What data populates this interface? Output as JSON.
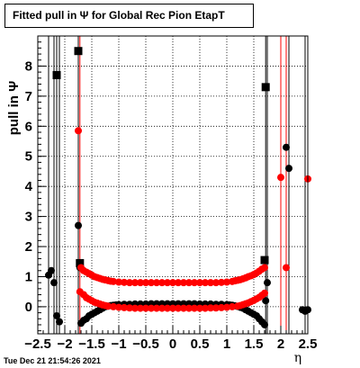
{
  "chart_data": {
    "type": "scatter",
    "title": "Fitted pull in  Ψ  for Global Rec Pion EtapT",
    "xlabel": "η",
    "ylabel": "pull in  Ψ",
    "xlim": [
      -2.5,
      2.5
    ],
    "ylim": [
      -0.9,
      9.0
    ],
    "grid": true,
    "x_ticks": [
      -2.5,
      -2,
      -1.5,
      -1,
      -0.5,
      0,
      0.5,
      1,
      1.5,
      2,
      2.5
    ],
    "x_tick_labels": [
      "−2.5",
      "−2",
      "−1.5",
      "−1",
      "−0.5",
      "0",
      "0.5",
      "1",
      "1.5",
      "2",
      "2.5"
    ],
    "y_ticks": [
      0,
      1,
      2,
      3,
      4,
      5,
      6,
      7,
      8
    ],
    "y_tick_labels": [
      "0",
      "1",
      "2",
      "3",
      "4",
      "5",
      "6",
      "7",
      "8"
    ],
    "series": [
      {
        "marker": "square",
        "color": "#000000",
        "points": [
          [
            -2.15,
            7.7
          ],
          [
            -1.75,
            8.5
          ],
          [
            -1.72,
            1.45
          ],
          [
            1.72,
            7.3
          ],
          [
            1.7,
            1.55
          ]
        ]
      },
      {
        "marker": "circle",
        "color": "#000000",
        "points": [
          [
            -2.3,
            1.05
          ],
          [
            -2.25,
            1.2
          ],
          [
            -2.2,
            0.8
          ],
          [
            -2.15,
            -0.3
          ],
          [
            -2.1,
            -0.5
          ],
          [
            -1.75,
            2.7
          ],
          [
            -1.72,
            1.3
          ],
          [
            -1.7,
            -0.55
          ],
          [
            -1.65,
            -0.45
          ],
          [
            -1.6,
            -0.4
          ],
          [
            -1.55,
            -0.3
          ],
          [
            -1.5,
            -0.25
          ],
          [
            -1.45,
            -0.2
          ],
          [
            -1.4,
            -0.15
          ],
          [
            -1.35,
            -0.1
          ],
          [
            -1.3,
            -0.05
          ],
          [
            -1.25,
            0.0
          ],
          [
            -1.2,
            0.02
          ],
          [
            -1.15,
            0.04
          ],
          [
            -1.1,
            0.05
          ],
          [
            -1.05,
            0.06
          ],
          [
            -1.0,
            0.07
          ],
          [
            -0.9,
            0.08
          ],
          [
            -0.8,
            0.08
          ],
          [
            -0.7,
            0.09
          ],
          [
            -0.6,
            0.09
          ],
          [
            -0.5,
            0.09
          ],
          [
            -0.4,
            0.1
          ],
          [
            -0.3,
            0.1
          ],
          [
            -0.2,
            0.1
          ],
          [
            -0.1,
            0.1
          ],
          [
            0.0,
            0.1
          ],
          [
            0.1,
            0.1
          ],
          [
            0.2,
            0.1
          ],
          [
            0.3,
            0.1
          ],
          [
            0.4,
            0.1
          ],
          [
            0.5,
            0.09
          ],
          [
            0.6,
            0.09
          ],
          [
            0.7,
            0.09
          ],
          [
            0.8,
            0.08
          ],
          [
            0.9,
            0.08
          ],
          [
            1.0,
            0.07
          ],
          [
            1.05,
            0.06
          ],
          [
            1.1,
            0.05
          ],
          [
            1.15,
            0.03
          ],
          [
            1.2,
            0.01
          ],
          [
            1.25,
            -0.02
          ],
          [
            1.3,
            -0.05
          ],
          [
            1.35,
            -0.1
          ],
          [
            1.4,
            -0.15
          ],
          [
            1.45,
            -0.2
          ],
          [
            1.5,
            -0.25
          ],
          [
            1.55,
            -0.3
          ],
          [
            1.6,
            -0.4
          ],
          [
            1.65,
            -0.5
          ],
          [
            1.7,
            -0.6
          ],
          [
            1.72,
            0.2
          ],
          [
            1.75,
            0.8
          ],
          [
            2.1,
            5.3
          ],
          [
            2.15,
            4.6
          ],
          [
            2.4,
            -0.1
          ],
          [
            2.45,
            -0.15
          ],
          [
            2.5,
            -0.1
          ]
        ]
      },
      {
        "marker": "circle",
        "color": "#ff0000",
        "points": [
          [
            -1.75,
            5.85
          ],
          [
            -1.72,
            0.5
          ],
          [
            -1.7,
            1.3
          ],
          [
            -1.65,
            1.2
          ],
          [
            -1.6,
            1.15
          ],
          [
            -1.55,
            1.1
          ],
          [
            -1.5,
            1.05
          ],
          [
            -1.45,
            1.0
          ],
          [
            -1.4,
            0.97
          ],
          [
            -1.35,
            0.94
          ],
          [
            -1.3,
            0.91
          ],
          [
            -1.25,
            0.89
          ],
          [
            -1.2,
            0.87
          ],
          [
            -1.15,
            0.85
          ],
          [
            -1.1,
            0.84
          ],
          [
            -1.0,
            0.82
          ],
          [
            -0.9,
            0.81
          ],
          [
            -0.8,
            0.8
          ],
          [
            -0.7,
            0.8
          ],
          [
            -0.6,
            0.8
          ],
          [
            -0.5,
            0.8
          ],
          [
            -0.4,
            0.8
          ],
          [
            -0.3,
            0.8
          ],
          [
            -0.2,
            0.8
          ],
          [
            -0.1,
            0.8
          ],
          [
            0.0,
            0.8
          ],
          [
            0.1,
            0.8
          ],
          [
            0.2,
            0.8
          ],
          [
            0.3,
            0.8
          ],
          [
            0.4,
            0.8
          ],
          [
            0.5,
            0.8
          ],
          [
            0.6,
            0.8
          ],
          [
            0.7,
            0.8
          ],
          [
            0.8,
            0.8
          ],
          [
            0.9,
            0.81
          ],
          [
            1.0,
            0.82
          ],
          [
            1.1,
            0.84
          ],
          [
            1.15,
            0.86
          ],
          [
            1.2,
            0.88
          ],
          [
            1.25,
            0.9
          ],
          [
            1.3,
            0.93
          ],
          [
            1.35,
            0.96
          ],
          [
            1.4,
            1.0
          ],
          [
            1.45,
            1.03
          ],
          [
            1.5,
            1.07
          ],
          [
            1.55,
            1.12
          ],
          [
            1.6,
            1.18
          ],
          [
            1.65,
            1.25
          ],
          [
            1.7,
            1.3
          ],
          [
            -1.65,
            0.4
          ],
          [
            -1.6,
            0.3
          ],
          [
            -1.55,
            0.25
          ],
          [
            -1.5,
            0.2
          ],
          [
            -1.45,
            0.15
          ],
          [
            -1.4,
            0.12
          ],
          [
            -1.35,
            0.09
          ],
          [
            -1.3,
            0.06
          ],
          [
            -1.25,
            0.04
          ],
          [
            -1.2,
            0.02
          ],
          [
            -1.1,
            0.0
          ],
          [
            -1.0,
            -0.02
          ],
          [
            -0.9,
            -0.03
          ],
          [
            -0.8,
            -0.04
          ],
          [
            -0.7,
            -0.05
          ],
          [
            -0.6,
            -0.05
          ],
          [
            -0.5,
            -0.05
          ],
          [
            -0.4,
            -0.05
          ],
          [
            -0.3,
            -0.05
          ],
          [
            -0.2,
            -0.05
          ],
          [
            -0.1,
            -0.05
          ],
          [
            0.0,
            -0.05
          ],
          [
            0.1,
            -0.05
          ],
          [
            0.2,
            -0.05
          ],
          [
            0.3,
            -0.05
          ],
          [
            0.4,
            -0.05
          ],
          [
            0.5,
            -0.05
          ],
          [
            0.6,
            -0.05
          ],
          [
            0.7,
            -0.04
          ],
          [
            0.8,
            -0.04
          ],
          [
            0.9,
            -0.03
          ],
          [
            1.0,
            -0.02
          ],
          [
            1.1,
            0.0
          ],
          [
            1.2,
            0.02
          ],
          [
            1.25,
            0.04
          ],
          [
            1.3,
            0.07
          ],
          [
            1.35,
            0.1
          ],
          [
            1.4,
            0.13
          ],
          [
            1.45,
            0.17
          ],
          [
            1.5,
            0.21
          ],
          [
            1.55,
            0.26
          ],
          [
            1.6,
            0.31
          ],
          [
            1.65,
            0.38
          ],
          [
            1.7,
            0.45
          ],
          [
            2.0,
            4.3
          ],
          [
            2.1,
            1.3
          ],
          [
            2.5,
            4.25
          ]
        ]
      }
    ],
    "footer": "Tue Dec 21 21:54:26 2021"
  }
}
